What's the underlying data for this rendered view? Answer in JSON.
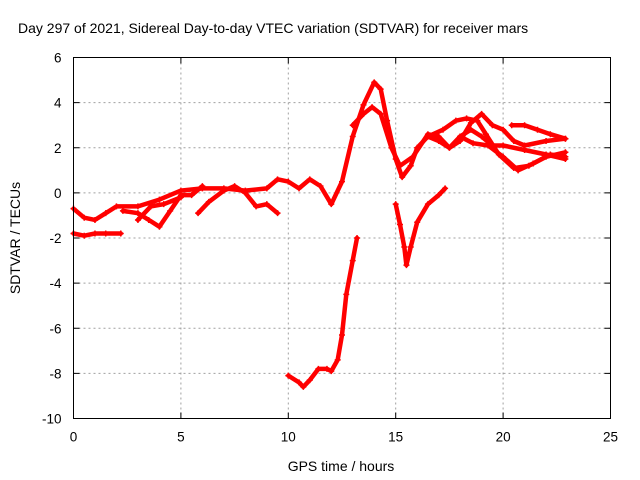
{
  "chart_data": {
    "type": "scatter",
    "title": "Day 297 of 2021, Sidereal Day-to-day VTEC variation (SDTVAR) for receiver mars",
    "xlabel": "GPS time / hours",
    "ylabel": "SDTVAR / TECUs",
    "xlim": [
      0,
      25
    ],
    "ylim": [
      -10,
      6
    ],
    "xticks": [
      0,
      5,
      10,
      15,
      20,
      25
    ],
    "yticks": [
      -10,
      -8,
      -6,
      -4,
      -2,
      0,
      2,
      4,
      6
    ],
    "grid": true,
    "color": "#ff0000",
    "series": [
      {
        "name": "track-1",
        "points": [
          [
            0,
            -0.7
          ],
          [
            0.5,
            -1.1
          ],
          [
            1,
            -1.2
          ],
          [
            1.5,
            -0.9
          ],
          [
            2,
            -0.6
          ],
          [
            3,
            -0.6
          ],
          [
            4,
            -0.3
          ],
          [
            5,
            0.1
          ],
          [
            6,
            0.2
          ],
          [
            7,
            0.2
          ],
          [
            8,
            0.1
          ],
          [
            9,
            0.2
          ],
          [
            9.5,
            0.6
          ],
          [
            10,
            0.5
          ],
          [
            10.5,
            0.2
          ],
          [
            11,
            0.6
          ],
          [
            11.5,
            0.3
          ],
          [
            12,
            -0.5
          ],
          [
            12.5,
            0.5
          ],
          [
            13,
            2.5
          ],
          [
            13.5,
            3.9
          ],
          [
            14,
            4.9
          ],
          [
            14.3,
            4.6
          ],
          [
            14.6,
            3.2
          ],
          [
            15,
            1.5
          ],
          [
            15.3,
            0.7
          ],
          [
            15.7,
            1.2
          ],
          [
            16,
            2.0
          ],
          [
            16.5,
            2.5
          ],
          [
            17,
            2.3
          ],
          [
            17.5,
            2.0
          ],
          [
            18,
            2.5
          ],
          [
            18.5,
            2.8
          ],
          [
            19,
            2.5
          ],
          [
            19.5,
            2.1
          ],
          [
            20,
            2.1
          ],
          [
            21,
            1.9
          ],
          [
            22,
            1.7
          ],
          [
            22.9,
            1.5
          ]
        ]
      },
      {
        "name": "track-2",
        "points": [
          [
            13,
            3.0
          ],
          [
            13.5,
            3.5
          ],
          [
            13.9,
            3.8
          ],
          [
            14.3,
            3.5
          ],
          [
            14.8,
            2.0
          ],
          [
            15.2,
            1.2
          ],
          [
            15.8,
            1.6
          ],
          [
            16.5,
            2.6
          ],
          [
            17,
            2.5
          ],
          [
            17.5,
            2.0
          ],
          [
            18,
            2.3
          ],
          [
            18.5,
            3.1
          ],
          [
            19,
            3.5
          ],
          [
            19.5,
            3.0
          ],
          [
            20,
            2.8
          ],
          [
            20.5,
            2.3
          ],
          [
            21,
            2.1
          ],
          [
            22,
            2.3
          ],
          [
            22.9,
            2.4
          ]
        ]
      },
      {
        "name": "track-3",
        "points": [
          [
            16.5,
            2.5
          ],
          [
            17.2,
            2.8
          ],
          [
            17.8,
            3.2
          ],
          [
            18.3,
            3.3
          ],
          [
            18.8,
            3.2
          ],
          [
            19.2,
            2.6
          ],
          [
            19.8,
            1.7
          ],
          [
            20.5,
            1.1
          ],
          [
            21.2,
            1.2
          ],
          [
            22,
            1.6
          ],
          [
            22.9,
            1.8
          ]
        ]
      },
      {
        "name": "track-4",
        "points": [
          [
            18,
            2.5
          ],
          [
            18.6,
            2.2
          ],
          [
            19.3,
            2.1
          ],
          [
            20,
            1.6
          ],
          [
            20.7,
            1.0
          ],
          [
            21.4,
            1.3
          ],
          [
            22.2,
            1.7
          ],
          [
            22.9,
            1.6
          ]
        ]
      },
      {
        "name": "track-5",
        "points": [
          [
            20.4,
            3.0
          ],
          [
            21,
            3.0
          ],
          [
            21.6,
            2.8
          ],
          [
            22.2,
            2.6
          ],
          [
            22.9,
            2.4
          ]
        ]
      },
      {
        "name": "track-6",
        "points": [
          [
            0,
            -1.8
          ],
          [
            0.5,
            -1.9
          ],
          [
            1,
            -1.8
          ],
          [
            1.5,
            -1.8
          ],
          [
            2.2,
            -1.8
          ]
        ]
      },
      {
        "name": "track-7",
        "points": [
          [
            2.3,
            -0.8
          ],
          [
            3,
            -0.9
          ],
          [
            3.5,
            -1.2
          ],
          [
            4,
            -1.5
          ],
          [
            4.5,
            -0.8
          ],
          [
            5,
            -0.1
          ],
          [
            5.5,
            -0.1
          ],
          [
            6,
            0.3
          ]
        ]
      },
      {
        "name": "track-8",
        "points": [
          [
            5.8,
            -0.9
          ],
          [
            6.3,
            -0.4
          ],
          [
            7,
            0.1
          ],
          [
            7.5,
            0.3
          ],
          [
            8,
            0.0
          ],
          [
            8.5,
            -0.6
          ],
          [
            9,
            -0.5
          ],
          [
            9.5,
            -0.9
          ]
        ]
      },
      {
        "name": "track-9",
        "points": [
          [
            3,
            -1.2
          ],
          [
            3.6,
            -0.6
          ],
          [
            4.2,
            -0.5
          ],
          [
            5,
            -0.2
          ]
        ]
      },
      {
        "name": "track-10",
        "points": [
          [
            10,
            -8.1
          ],
          [
            10.5,
            -8.4
          ],
          [
            10.7,
            -8.6
          ],
          [
            11,
            -8.3
          ],
          [
            11.4,
            -7.8
          ],
          [
            11.8,
            -7.8
          ],
          [
            12,
            -7.9
          ],
          [
            12.3,
            -7.4
          ],
          [
            12.5,
            -6.3
          ],
          [
            12.7,
            -4.5
          ],
          [
            13,
            -3.0
          ],
          [
            13.2,
            -2.0
          ]
        ]
      },
      {
        "name": "track-11",
        "points": [
          [
            15,
            -0.5
          ],
          [
            15.2,
            -1.4
          ],
          [
            15.4,
            -2.4
          ],
          [
            15.5,
            -3.2
          ],
          [
            15.7,
            -2.4
          ],
          [
            16,
            -1.3
          ],
          [
            16.5,
            -0.5
          ],
          [
            17,
            -0.1
          ],
          [
            17.3,
            0.2
          ]
        ]
      }
    ]
  }
}
